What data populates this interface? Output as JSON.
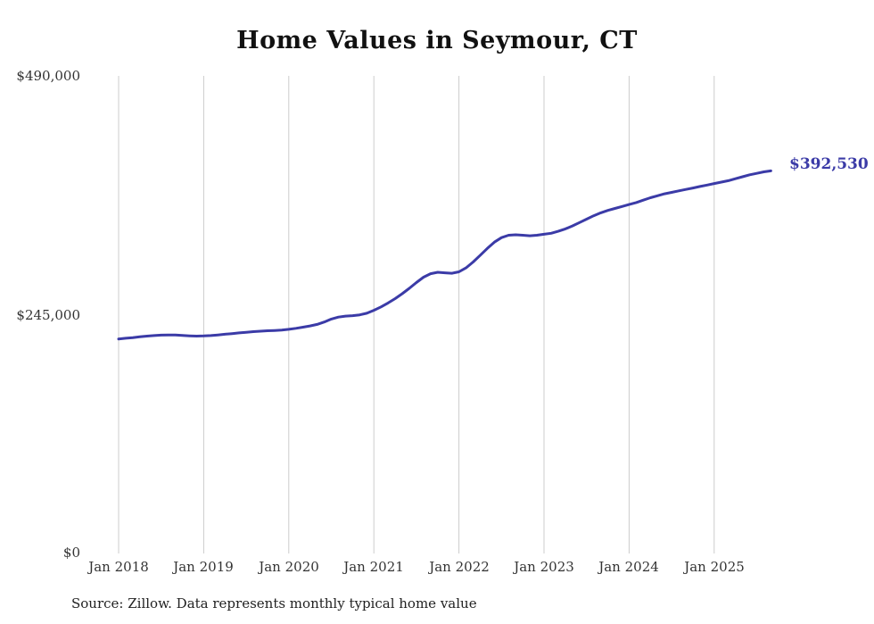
{
  "title": "Home Values in Seymour, CT",
  "source_note": "Source: Zillow. Data represents monthly typical home value",
  "colors": {
    "line": "#3b3ba7",
    "gridline": "#cccccc",
    "end_label": "#3b3ba7",
    "text": "#333333",
    "title": "#111111"
  },
  "chart_data": {
    "type": "line",
    "title": "Home Values in Seymour, CT",
    "xlabel": "",
    "ylabel": "",
    "ylim": [
      0,
      490000
    ],
    "grid": "vertical-only",
    "legend": "none",
    "frequency": "monthly",
    "x_start": "Jan 2018",
    "x_end": "Sep 2025",
    "x_ticks": [
      "Jan 2018",
      "Jan 2019",
      "Jan 2020",
      "Jan 2021",
      "Jan 2022",
      "Jan 2023",
      "Jan 2024",
      "Jan 2025"
    ],
    "y_ticks": [
      {
        "label": "$0",
        "value": 0
      },
      {
        "label": "$245,000",
        "value": 245000
      },
      {
        "label": "$490,000",
        "value": 490000
      }
    ],
    "last_value": 392530,
    "last_value_label": "$392,530",
    "series": [
      {
        "name": "Typical home value",
        "values": [
          220000,
          220800,
          221500,
          222300,
          223000,
          223600,
          224000,
          224200,
          224100,
          223700,
          223300,
          223000,
          223200,
          223600,
          224200,
          224900,
          225600,
          226300,
          227000,
          227600,
          228100,
          228500,
          228800,
          229200,
          230000,
          231000,
          232200,
          233500,
          235000,
          237500,
          240500,
          242500,
          243500,
          244000,
          244800,
          246500,
          249500,
          253000,
          257000,
          261500,
          266500,
          272000,
          278000,
          283500,
          287000,
          288500,
          288000,
          287500,
          289000,
          293000,
          299000,
          306000,
          313000,
          319500,
          324000,
          326500,
          327000,
          326500,
          326000,
          326500,
          327500,
          328500,
          330500,
          333000,
          336000,
          339500,
          343000,
          346500,
          349500,
          352000,
          354000,
          356000,
          358000,
          360000,
          362500,
          365000,
          367000,
          369000,
          370500,
          372000,
          373500,
          375000,
          376500,
          378000,
          379500,
          381000,
          382500,
          384500,
          386500,
          388500,
          390000,
          391500,
          392530
        ]
      }
    ]
  }
}
